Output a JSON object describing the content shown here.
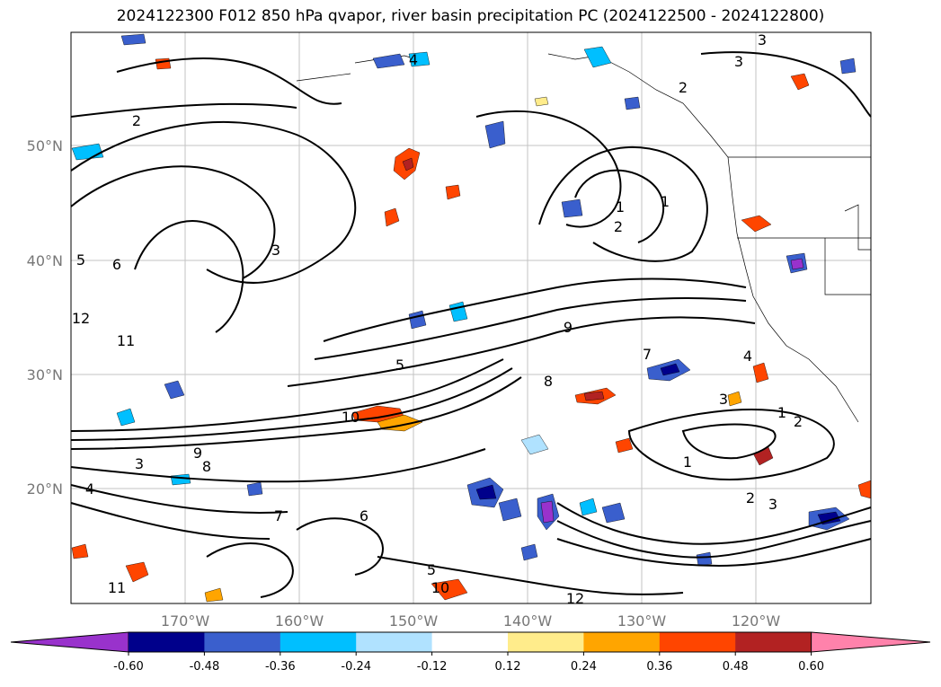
{
  "title": "2024122300 F012 850 hPa qvapor, river basin precipitation PC (2024122500 - 2024122800)",
  "map": {
    "lat_labels": [
      "50°N",
      "40°N",
      "30°N",
      "20°N"
    ],
    "lon_labels": [
      "170°W",
      "160°W",
      "150°W",
      "140°W",
      "130°W",
      "120°W"
    ],
    "gridlines": true,
    "contour_labels": [
      "2",
      "3",
      "4",
      "3",
      "2",
      "1",
      "1",
      "2",
      "3",
      "5",
      "6",
      "7",
      "8",
      "9",
      "10",
      "11",
      "12",
      "5",
      "4",
      "3",
      "2",
      "1",
      "9",
      "8",
      "7",
      "6",
      "5",
      "10",
      "11",
      "12",
      "1",
      "2",
      "3",
      "4",
      "3"
    ]
  },
  "colorbar": {
    "ticks": [
      "-0.60",
      "-0.48",
      "-0.36",
      "-0.24",
      "-0.12",
      "0.12",
      "0.24",
      "0.36",
      "0.48",
      "0.60"
    ],
    "colors": [
      "#9932cc",
      "#00008b",
      "#3a5fcd",
      "#00bfff",
      "#b0e2ff",
      "#ffffff",
      "#ffec8b",
      "#ffa500",
      "#ff4500",
      "#b22222",
      "#ff82ab"
    ]
  }
}
